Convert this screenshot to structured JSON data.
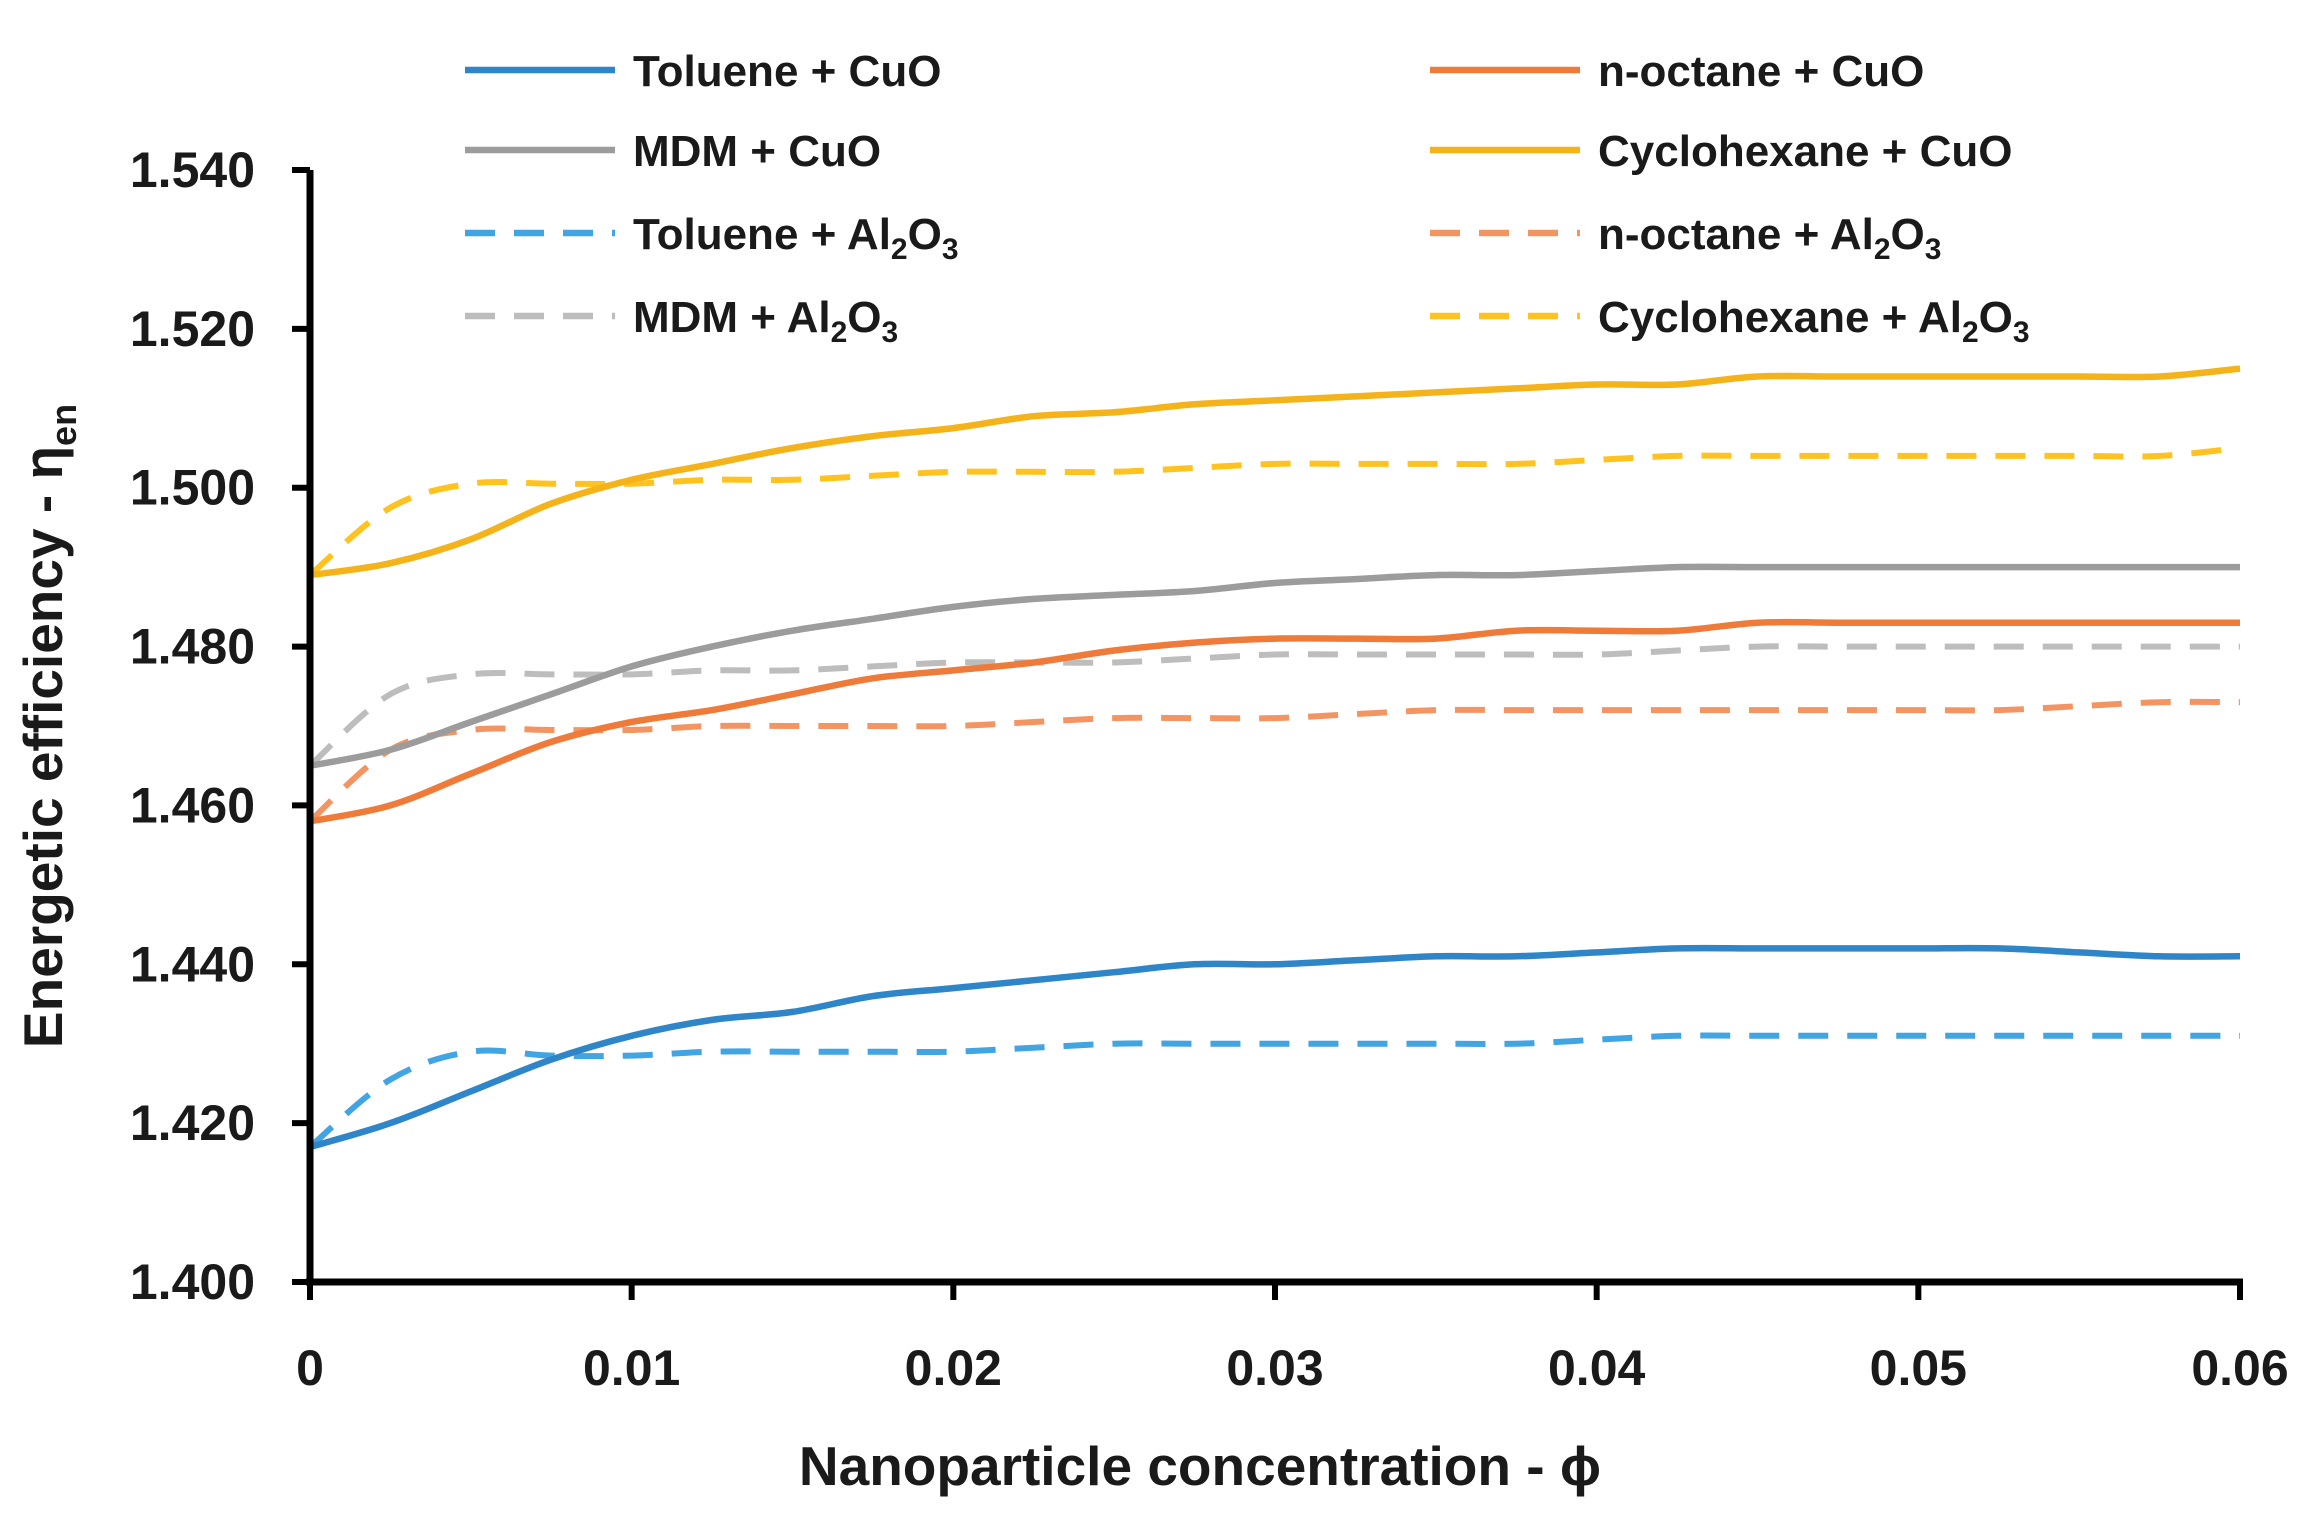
{
  "chart_data": {
    "type": "line",
    "title": "",
    "xlabel": "Nanoparticle concentration - ϕ",
    "ylabel": "Energetic efficiency - η",
    "ylabel_sub": "en",
    "xlim": [
      0,
      0.06
    ],
    "ylim": [
      1.4,
      1.54
    ],
    "x_ticks": [
      0,
      0.01,
      0.02,
      0.03,
      0.04,
      0.05,
      0.06
    ],
    "x_tick_labels": [
      "0",
      "0.01",
      "0.02",
      "0.03",
      "0.04",
      "0.05",
      "0.06"
    ],
    "y_ticks": [
      1.4,
      1.42,
      1.44,
      1.46,
      1.48,
      1.5,
      1.52,
      1.54
    ],
    "y_tick_labels": [
      "1.400",
      "1.420",
      "1.440",
      "1.460",
      "1.480",
      "1.500",
      "1.520",
      "1.540"
    ],
    "grid": false,
    "legend_position": "top",
    "x": [
      0,
      0.0025,
      0.005,
      0.0075,
      0.01,
      0.0125,
      0.015,
      0.0175,
      0.02,
      0.0225,
      0.025,
      0.0275,
      0.03,
      0.0325,
      0.035,
      0.0375,
      0.04,
      0.0425,
      0.045,
      0.0475,
      0.05,
      0.0525,
      0.055,
      0.0575,
      0.06
    ],
    "series": [
      {
        "name": "Toluene + CuO",
        "name_parts": [
          "Toluene + CuO"
        ],
        "color": "#2e86c9",
        "dashed": false,
        "values": [
          1.417,
          1.42,
          1.424,
          1.428,
          1.431,
          1.433,
          1.434,
          1.436,
          1.437,
          1.438,
          1.439,
          1.44,
          1.44,
          1.4405,
          1.441,
          1.441,
          1.4415,
          1.442,
          1.442,
          1.442,
          1.442,
          1.442,
          1.4415,
          1.441,
          1.441
        ]
      },
      {
        "name": "n-octane + CuO",
        "name_parts": [
          "n-octane + CuO"
        ],
        "color": "#ef7b3a",
        "dashed": false,
        "values": [
          1.458,
          1.46,
          1.464,
          1.468,
          1.4705,
          1.472,
          1.474,
          1.476,
          1.477,
          1.478,
          1.4795,
          1.4805,
          1.481,
          1.481,
          1.481,
          1.482,
          1.482,
          1.482,
          1.483,
          1.483,
          1.483,
          1.483,
          1.483,
          1.483,
          1.483
        ]
      },
      {
        "name": "MDM + CuO",
        "name_parts": [
          "MDM + CuO"
        ],
        "color": "#9c9c9c",
        "dashed": false,
        "values": [
          1.465,
          1.467,
          1.4705,
          1.474,
          1.4775,
          1.48,
          1.482,
          1.4835,
          1.485,
          1.486,
          1.4865,
          1.487,
          1.488,
          1.4885,
          1.489,
          1.489,
          1.4895,
          1.49,
          1.49,
          1.49,
          1.49,
          1.49,
          1.49,
          1.49,
          1.49
        ]
      },
      {
        "name": "Cyclohexane + CuO",
        "name_parts": [
          "Cyclohexane + CuO"
        ],
        "color": "#f5b31b",
        "dashed": false,
        "values": [
          1.489,
          1.4905,
          1.4935,
          1.498,
          1.501,
          1.503,
          1.505,
          1.5065,
          1.5075,
          1.509,
          1.5095,
          1.5105,
          1.511,
          1.5115,
          1.512,
          1.5125,
          1.513,
          1.513,
          1.514,
          1.514,
          1.514,
          1.514,
          1.514,
          1.514,
          1.515
        ]
      },
      {
        "name": "Toluene + Al2O3",
        "name_parts": [
          "Toluene + Al",
          "2",
          "O",
          "3"
        ],
        "color": "#41a4e3",
        "dashed": true,
        "values": [
          1.417,
          1.4255,
          1.429,
          1.4285,
          1.4285,
          1.429,
          1.429,
          1.429,
          1.429,
          1.4295,
          1.43,
          1.43,
          1.43,
          1.43,
          1.43,
          1.43,
          1.4305,
          1.431,
          1.431,
          1.431,
          1.431,
          1.431,
          1.431,
          1.431,
          1.431
        ]
      },
      {
        "name": "n-octane + Al2O3",
        "name_parts": [
          "n-octane + Al",
          "2",
          "O",
          "3"
        ],
        "color": "#f39562",
        "dashed": true,
        "values": [
          1.458,
          1.467,
          1.4695,
          1.4695,
          1.4695,
          1.47,
          1.47,
          1.47,
          1.47,
          1.4705,
          1.471,
          1.471,
          1.471,
          1.4715,
          1.472,
          1.472,
          1.472,
          1.472,
          1.472,
          1.472,
          1.472,
          1.472,
          1.4725,
          1.473,
          1.473
        ]
      },
      {
        "name": "MDM + Al2O3",
        "name_parts": [
          "MDM + Al",
          "2",
          "O",
          "3"
        ],
        "color": "#bdbdbd",
        "dashed": true,
        "values": [
          1.465,
          1.474,
          1.4765,
          1.4765,
          1.4765,
          1.477,
          1.477,
          1.4775,
          1.478,
          1.478,
          1.478,
          1.4785,
          1.479,
          1.479,
          1.479,
          1.479,
          1.479,
          1.4795,
          1.48,
          1.48,
          1.48,
          1.48,
          1.48,
          1.48,
          1.48
        ]
      },
      {
        "name": "Cyclohexane + Al2O3",
        "name_parts": [
          "Cyclohexane + Al",
          "2",
          "O",
          "3"
        ],
        "color": "#ffc21f",
        "dashed": true,
        "values": [
          1.489,
          1.4975,
          1.5005,
          1.5005,
          1.5005,
          1.501,
          1.501,
          1.5015,
          1.502,
          1.502,
          1.502,
          1.5025,
          1.503,
          1.503,
          1.503,
          1.503,
          1.5035,
          1.504,
          1.504,
          1.504,
          1.504,
          1.504,
          1.504,
          1.504,
          1.505
        ]
      }
    ]
  }
}
